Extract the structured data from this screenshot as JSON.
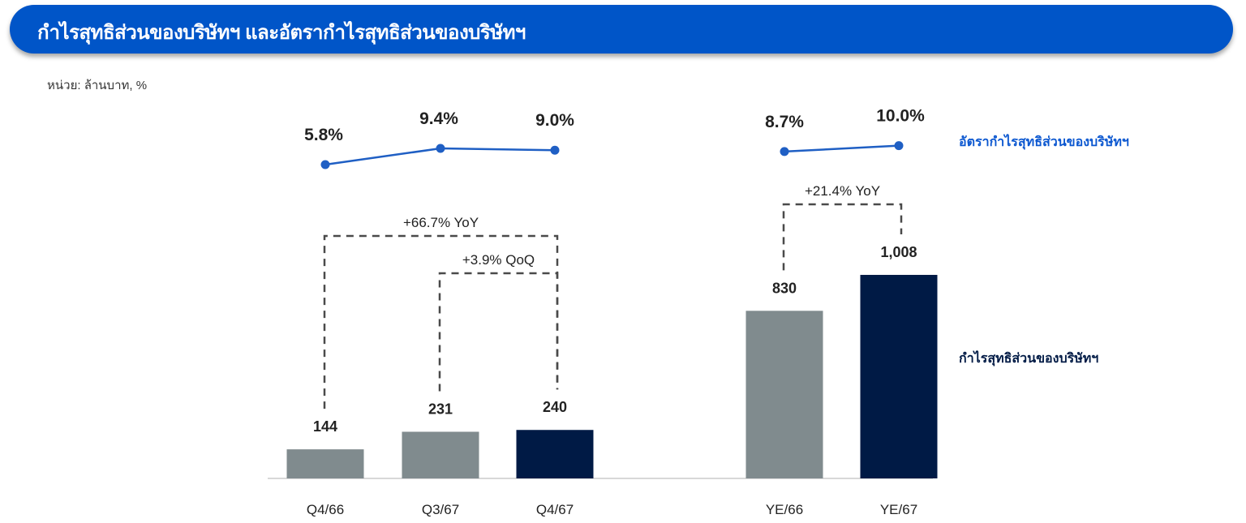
{
  "header": {
    "title": "กำไรสุทธิส่วนของบริษัทฯ และอัตรากำไรสุทธิส่วนของบริษัทฯ"
  },
  "unit_note": "หน่วย: ล้านบาท, %",
  "colors": {
    "banner": "#0055c8",
    "previous": "#808b8e",
    "current": "#001a45",
    "margin_line": "#1f5fc4",
    "margin_legend": "#0b57d0",
    "profit_legend": "#001a45"
  },
  "chart_data": {
    "type": "bar",
    "categories": [
      "Q4/66",
      "Q3/67",
      "Q4/67",
      "YE/66",
      "YE/67"
    ],
    "series": [
      {
        "name": "กำไรสุทธิส่วนของบริษัทฯ",
        "values": [
          144,
          231,
          240,
          830,
          1008
        ],
        "labels": [
          "144",
          "231",
          "240",
          "830",
          "1,008"
        ]
      },
      {
        "name": "อัตรากำไรสุทธิส่วนของบริษัทฯ",
        "type": "line",
        "values": [
          5.8,
          9.4,
          9.0,
          8.7,
          10.0
        ],
        "labels": [
          "5.8%",
          "9.4%",
          "9.0%",
          "8.7%",
          "10.0%"
        ]
      }
    ],
    "annotations": [
      {
        "text": "+66.7% YoY",
        "from": "Q4/66",
        "to": "Q4/67"
      },
      {
        "text": "+3.9% QoQ",
        "from": "Q3/67",
        "to": "Q4/67"
      },
      {
        "text": "+21.4%  YoY",
        "from": "YE/66",
        "to": "YE/67"
      }
    ],
    "ylim": [
      0,
      1100
    ],
    "legend_position": "right"
  }
}
